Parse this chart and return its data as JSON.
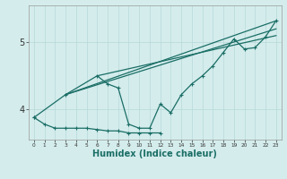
{
  "background_color": "#d4ecec",
  "line_color": "#1a6e66",
  "grid_color": "#b8d8d8",
  "xlabel": "Humidex (Indice chaleur)",
  "xlabel_fontsize": 7,
  "yticks": [
    4,
    5
  ],
  "ytick_labels": [
    "4",
    "5"
  ],
  "xticks": [
    0,
    1,
    2,
    3,
    4,
    5,
    6,
    7,
    8,
    9,
    10,
    11,
    12,
    13,
    14,
    15,
    16,
    17,
    18,
    19,
    20,
    21,
    22,
    23
  ],
  "ylim": [
    3.55,
    5.55
  ],
  "xlim": [
    -0.5,
    23.5
  ],
  "series": [
    {
      "x": [
        0,
        3,
        6,
        7,
        8,
        9,
        10,
        11,
        12,
        13,
        14,
        15,
        16,
        17,
        18,
        19,
        20,
        21,
        22,
        23
      ],
      "y": [
        3.88,
        4.22,
        4.5,
        4.38,
        4.32,
        3.78,
        3.72,
        3.72,
        4.08,
        3.95,
        4.22,
        4.38,
        4.5,
        4.65,
        4.85,
        5.05,
        4.9,
        4.92,
        5.08,
        5.32
      ],
      "with_markers": true,
      "linewidth": 0.9
    },
    {
      "x": [
        3,
        23
      ],
      "y": [
        4.22,
        5.32
      ],
      "with_markers": false,
      "linewidth": 0.9
    },
    {
      "x": [
        3,
        23
      ],
      "y": [
        4.22,
        5.2
      ],
      "with_markers": false,
      "linewidth": 0.9
    },
    {
      "x": [
        6,
        23
      ],
      "y": [
        4.5,
        5.1
      ],
      "with_markers": false,
      "linewidth": 0.9
    },
    {
      "x": [
        0,
        1,
        2,
        3,
        4,
        5,
        6,
        7,
        8,
        9,
        10,
        11,
        12
      ],
      "y": [
        3.88,
        3.78,
        3.72,
        3.72,
        3.72,
        3.72,
        3.7,
        3.68,
        3.68,
        3.65,
        3.65,
        3.65,
        3.65
      ],
      "with_markers": true,
      "linewidth": 0.9
    }
  ]
}
